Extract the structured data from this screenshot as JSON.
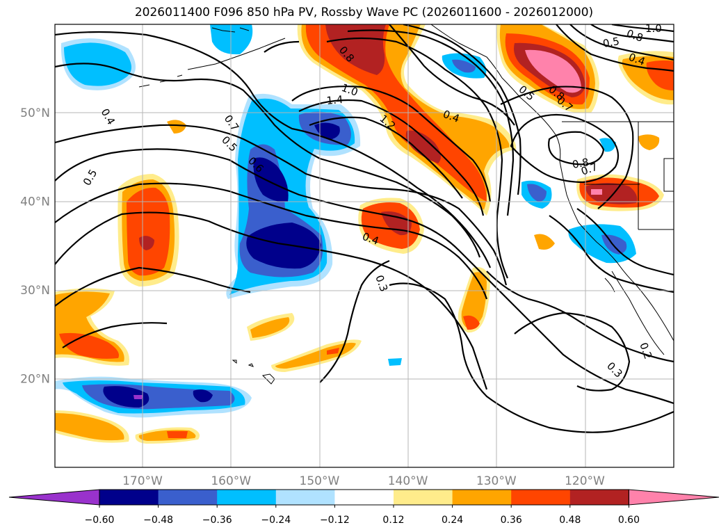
{
  "title": "2026011400 F096 850 hPa PV, Rossby Wave PC (2026011600 - 2026012000)",
  "map": {
    "lat_ticks": [
      {
        "value": 50,
        "label": "50°N"
      },
      {
        "value": 40,
        "label": "40°N"
      },
      {
        "value": 30,
        "label": "30°N"
      },
      {
        "value": 20,
        "label": "20°N"
      }
    ],
    "lon_ticks": [
      {
        "value": -170,
        "label": "170°W"
      },
      {
        "value": -160,
        "label": "160°W"
      },
      {
        "value": -150,
        "label": "150°W"
      },
      {
        "value": -140,
        "label": "140°W"
      },
      {
        "value": -130,
        "label": "130°W"
      },
      {
        "value": -120,
        "label": "120°W"
      }
    ],
    "contour_labels": [
      "0.4",
      "0.5",
      "0.7",
      "0.5",
      "0.6",
      "0.8",
      "1.0",
      "1.4",
      "1.2",
      "0.4",
      "0.4",
      "0.3",
      "0.3",
      "0.2",
      "0.8",
      "0.7",
      "0.5",
      "0.4",
      "0.8",
      "1.0",
      "0.8",
      "0.7",
      "0.5"
    ]
  },
  "colorbar": {
    "ticks": [
      "−0.60",
      "−0.48",
      "−0.36",
      "−0.24",
      "−0.12",
      "0.12",
      "0.24",
      "0.36",
      "0.48",
      "0.60"
    ],
    "colors": [
      "#9932cc",
      "#00008b",
      "#3a5fcd",
      "#00bfff",
      "#b0e2ff",
      "#ffffff",
      "#ffec8b",
      "#ffa500",
      "#ff4500",
      "#b22222",
      "#ff82ab"
    ]
  }
}
